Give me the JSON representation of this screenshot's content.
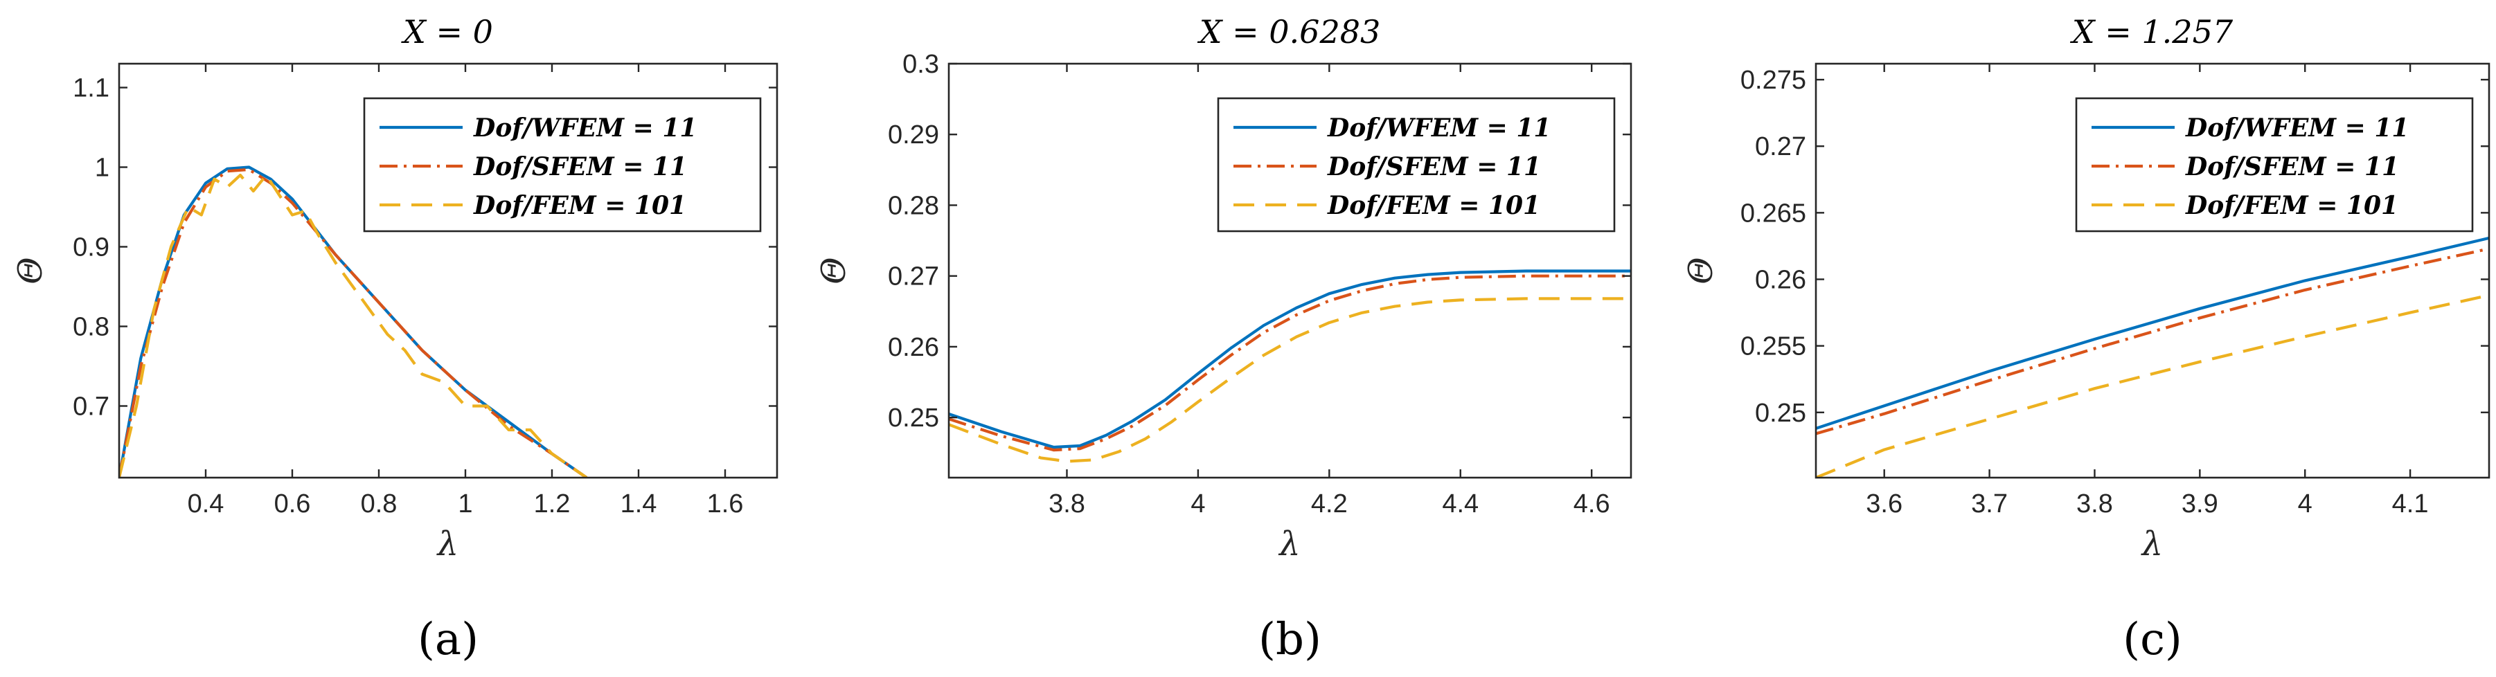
{
  "figure": {
    "captions": [
      "(a)",
      "(b)",
      "(c)"
    ]
  },
  "chart_data": [
    {
      "type": "line",
      "title": "X = 0",
      "xlabel": "λ",
      "ylabel": "Θ",
      "xlim": [
        0.2,
        1.72
      ],
      "ylim": [
        0.61,
        1.13
      ],
      "xticks": [
        0.4,
        0.6,
        0.8,
        1,
        1.2,
        1.4,
        1.6
      ],
      "xtick_labels": [
        "0.4",
        "0.6",
        "0.8",
        "1",
        "1.2",
        "1.4",
        "1.6"
      ],
      "yticks": [
        0.7,
        0.8,
        0.9,
        1,
        1.1
      ],
      "ytick_labels": [
        "0.7",
        "0.8",
        "0.9",
        "1",
        "1.1"
      ],
      "legend_position": "top-right",
      "series": [
        {
          "name": "Dof/WFEM = 11",
          "color": "#0072BD",
          "dash": "solid",
          "x": [
            0.2,
            0.25,
            0.3,
            0.35,
            0.4,
            0.45,
            0.5,
            0.55,
            0.6,
            0.7,
            0.8,
            0.9,
            1.0,
            1.1,
            1.2,
            1.28
          ],
          "y": [
            0.61,
            0.76,
            0.86,
            0.94,
            0.98,
            0.998,
            1.0,
            0.985,
            0.96,
            0.89,
            0.83,
            0.77,
            0.72,
            0.68,
            0.64,
            0.61
          ]
        },
        {
          "name": "Dof/SFEM = 11",
          "color": "#D95319",
          "dash": "dashdot",
          "x": [
            0.2,
            0.25,
            0.3,
            0.35,
            0.4,
            0.45,
            0.5,
            0.55,
            0.6,
            0.7,
            0.8,
            0.9,
            1.0,
            1.1,
            1.2,
            1.28
          ],
          "y": [
            0.61,
            0.75,
            0.85,
            0.93,
            0.975,
            0.995,
            0.997,
            0.98,
            0.955,
            0.89,
            0.83,
            0.77,
            0.72,
            0.675,
            0.64,
            0.61
          ]
        },
        {
          "name": "Dof/FEM = 101",
          "color": "#EDB120",
          "dash": "dashed",
          "x": [
            0.2,
            0.24,
            0.28,
            0.32,
            0.36,
            0.39,
            0.42,
            0.45,
            0.48,
            0.51,
            0.54,
            0.57,
            0.6,
            0.63,
            0.66,
            0.7,
            0.74,
            0.78,
            0.82,
            0.86,
            0.9,
            0.95,
            1.0,
            1.05,
            1.1,
            1.15,
            1.2,
            1.28
          ],
          "y": [
            0.61,
            0.7,
            0.82,
            0.9,
            0.95,
            0.94,
            0.985,
            0.975,
            0.99,
            0.97,
            0.99,
            0.965,
            0.94,
            0.945,
            0.915,
            0.88,
            0.85,
            0.82,
            0.79,
            0.77,
            0.74,
            0.73,
            0.7,
            0.7,
            0.67,
            0.67,
            0.64,
            0.61
          ]
        }
      ]
    },
    {
      "type": "line",
      "title": "X = 0.6283",
      "xlabel": "λ",
      "ylabel": "Θ",
      "xlim": [
        3.62,
        4.66
      ],
      "ylim": [
        0.2415,
        0.3
      ],
      "xticks": [
        3.8,
        4,
        4.2,
        4.4,
        4.6
      ],
      "xtick_labels": [
        "3.8",
        "4",
        "4.2",
        "4.4",
        "4.6"
      ],
      "yticks": [
        0.25,
        0.26,
        0.27,
        0.28,
        0.29,
        0.3
      ],
      "ytick_labels": [
        "0.25",
        "0.26",
        "0.27",
        "0.28",
        "0.29",
        "0.3"
      ],
      "legend_position": "top-right",
      "series": [
        {
          "name": "Dof/WFEM = 11",
          "color": "#0072BD",
          "dash": "solid",
          "x": [
            3.62,
            3.7,
            3.78,
            3.82,
            3.86,
            3.9,
            3.95,
            4.0,
            4.05,
            4.1,
            4.15,
            4.2,
            4.25,
            4.3,
            4.35,
            4.4,
            4.5,
            4.6,
            4.66
          ],
          "y": [
            0.2505,
            0.248,
            0.2458,
            0.246,
            0.2475,
            0.2495,
            0.2525,
            0.2562,
            0.2598,
            0.263,
            0.2655,
            0.2675,
            0.2688,
            0.2697,
            0.2702,
            0.2705,
            0.2707,
            0.2707,
            0.2707
          ]
        },
        {
          "name": "Dof/SFEM = 11",
          "color": "#D95319",
          "dash": "dashdot",
          "x": [
            3.62,
            3.7,
            3.78,
            3.82,
            3.86,
            3.9,
            3.95,
            4.0,
            4.05,
            4.1,
            4.15,
            4.2,
            4.25,
            4.3,
            4.35,
            4.4,
            4.5,
            4.6,
            4.66
          ],
          "y": [
            0.2498,
            0.2474,
            0.2454,
            0.2456,
            0.247,
            0.2488,
            0.2517,
            0.2553,
            0.2588,
            0.262,
            0.2645,
            0.2665,
            0.2679,
            0.2689,
            0.2695,
            0.2698,
            0.27,
            0.27,
            0.27
          ]
        },
        {
          "name": "Dof/FEM = 101",
          "color": "#EDB120",
          "dash": "dashed",
          "x": [
            3.62,
            3.7,
            3.76,
            3.8,
            3.84,
            3.88,
            3.92,
            3.96,
            4.0,
            4.05,
            4.1,
            4.15,
            4.2,
            4.25,
            4.3,
            4.35,
            4.4,
            4.5,
            4.6,
            4.66
          ],
          "y": [
            0.249,
            0.2462,
            0.2443,
            0.2438,
            0.244,
            0.2452,
            0.247,
            0.2494,
            0.2522,
            0.2556,
            0.2588,
            0.2614,
            0.2634,
            0.2648,
            0.2657,
            0.2663,
            0.2666,
            0.2668,
            0.2668,
            0.2668
          ]
        }
      ]
    },
    {
      "type": "line",
      "title": "X = 1.257",
      "xlabel": "λ",
      "ylabel": "Θ",
      "xlim": [
        3.535,
        4.175
      ],
      "ylim": [
        0.2451,
        0.2762
      ],
      "xticks": [
        3.6,
        3.7,
        3.8,
        3.9,
        4,
        4.1
      ],
      "xtick_labels": [
        "3.6",
        "3.7",
        "3.8",
        "3.9",
        "4",
        "4.1"
      ],
      "yticks": [
        0.25,
        0.255,
        0.26,
        0.265,
        0.27,
        0.275
      ],
      "ytick_labels": [
        "0.25",
        "0.255",
        "0.26",
        "0.265",
        "0.27",
        "0.275"
      ],
      "legend_position": "top-right",
      "series": [
        {
          "name": "Dof/WFEM = 11",
          "color": "#0072BD",
          "dash": "solid",
          "x": [
            3.535,
            3.6,
            3.7,
            3.8,
            3.9,
            4.0,
            4.1,
            4.175
          ],
          "y": [
            0.2488,
            0.2505,
            0.2531,
            0.2555,
            0.2578,
            0.2599,
            0.2617,
            0.2631
          ]
        },
        {
          "name": "Dof/SFEM = 11",
          "color": "#D95319",
          "dash": "dashdot",
          "x": [
            3.535,
            3.6,
            3.7,
            3.8,
            3.9,
            4.0,
            4.1,
            4.175
          ],
          "y": [
            0.2484,
            0.2499,
            0.2524,
            0.2548,
            0.2571,
            0.2592,
            0.261,
            0.2623
          ]
        },
        {
          "name": "Dof/FEM = 101",
          "color": "#EDB120",
          "dash": "dashed",
          "x": [
            3.535,
            3.6,
            3.7,
            3.8,
            3.9,
            4.0,
            4.1,
            4.175
          ],
          "y": [
            0.2451,
            0.2472,
            0.2495,
            0.2518,
            0.2538,
            0.2557,
            0.2575,
            0.2588
          ]
        }
      ]
    }
  ]
}
